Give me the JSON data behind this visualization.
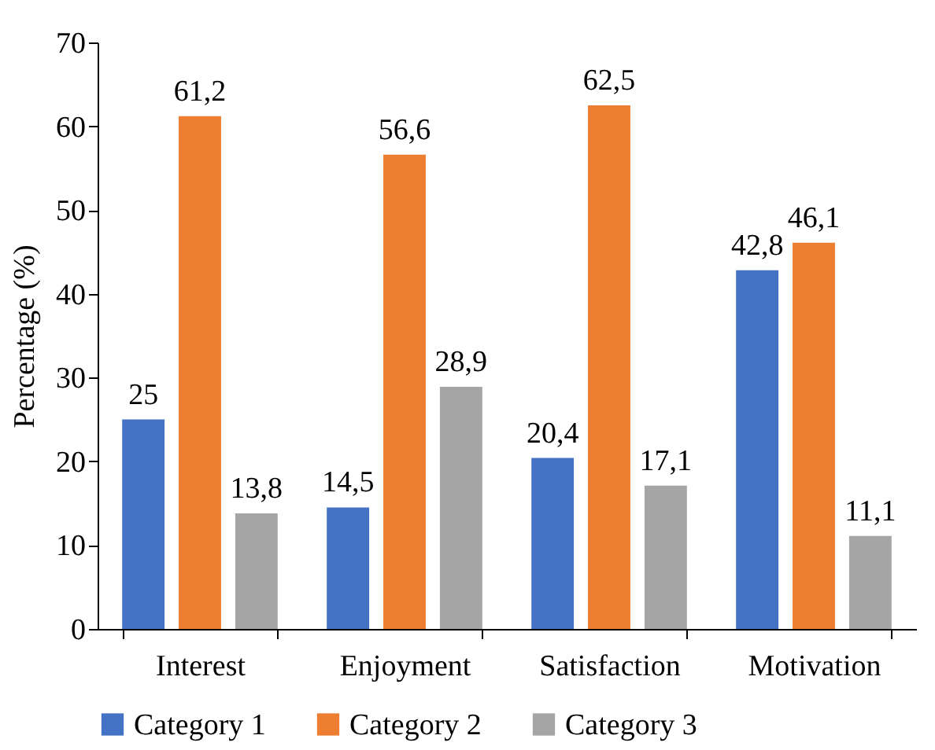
{
  "chart_data": {
    "type": "bar",
    "ylabel": "Percentage (%)",
    "categories": [
      "Interest",
      "Enjoyment",
      "Satisfaction",
      "Motivation"
    ],
    "series": [
      {
        "name": "Category 1",
        "color": "#4472c4",
        "values": [
          25,
          14.5,
          20.4,
          42.8
        ],
        "value_labels": [
          "25",
          "14,5",
          "20,4",
          "42,8"
        ]
      },
      {
        "name": "Category 2",
        "color": "#ed7d31",
        "values": [
          61.2,
          56.6,
          62.5,
          46.1
        ],
        "value_labels": [
          "61,2",
          "56,6",
          "62,5",
          "46,1"
        ]
      },
      {
        "name": "Category 3",
        "color": "#a5a5a5",
        "values": [
          13.8,
          28.9,
          17.1,
          11.1
        ],
        "value_labels": [
          "13,8",
          "28,9",
          "17,1",
          "11,1"
        ]
      }
    ],
    "ylim": [
      0,
      70
    ],
    "yticks": [
      0,
      10,
      20,
      30,
      40,
      50,
      60,
      70
    ],
    "grid": false,
    "legend": "bottom"
  }
}
